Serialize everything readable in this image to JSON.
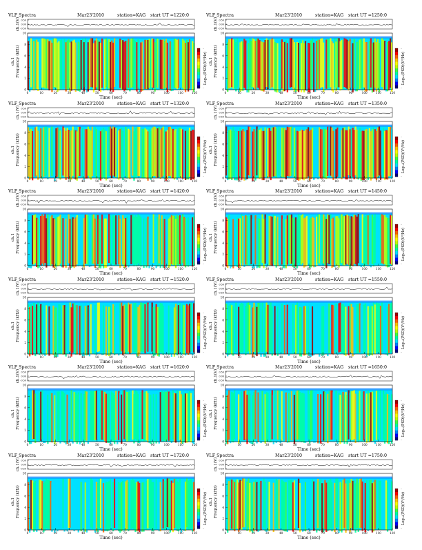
{
  "document": {
    "panel_title": "VLF Spectra",
    "date": "Mar23'2010",
    "station": "station=KAG",
    "start_prefix": "start  UT  =",
    "trace_label": "ch.1(V)",
    "trace_ticks": [
      "0.50",
      "0.00",
      "-0.50"
    ],
    "spectrogram_ylabel": "Frequency  (kHz)",
    "channel_label": "ch.1",
    "xlabel": "Time  (sec)",
    "colorbar_label": "Log₁₀(PSD)(V²/Hz)",
    "colormap": [
      "#00007f",
      "#0000ff",
      "#0080ff",
      "#00e0ff",
      "#00ff9f",
      "#40ff40",
      "#c0ff00",
      "#ffff00",
      "#ffc000",
      "#ff6000",
      "#ff0000",
      "#a00000"
    ],
    "background_color": "#00e0ff"
  },
  "chart_data": [
    {
      "type": "heatmap",
      "start_ut": "1220:0",
      "x_ticks": [
        "0",
        "10",
        "20",
        "30",
        "40",
        "50",
        "60",
        "70",
        "80",
        "90",
        "100",
        "110",
        "120"
      ],
      "xlim": [
        0,
        120
      ],
      "y_ticks": [
        "0",
        "2",
        "4",
        "6",
        "8",
        "10"
      ],
      "ylim": [
        0,
        10
      ],
      "colorbar_ticks": [
        "-",
        "-"
      ],
      "activity": 0.9
    },
    {
      "type": "heatmap",
      "start_ut": "1250:0",
      "x_ticks": [
        "0",
        "10",
        "20",
        "30",
        "40",
        "50",
        "60",
        "70",
        "80",
        "90",
        "100",
        "110",
        "120"
      ],
      "xlim": [
        0,
        120
      ],
      "y_ticks": [
        "0",
        "2",
        "4",
        "6",
        "8",
        "10"
      ],
      "ylim": [
        0,
        10
      ],
      "colorbar_ticks": [
        "-",
        "-"
      ],
      "activity": 0.88
    },
    {
      "type": "heatmap",
      "start_ut": "1320:0",
      "x_ticks": [
        "0",
        "10",
        "20",
        "30",
        "40",
        "50",
        "60",
        "70",
        "80",
        "90",
        "100",
        "110",
        "120"
      ],
      "xlim": [
        0,
        120
      ],
      "y_ticks": [
        "0",
        "2",
        "4",
        "6",
        "8",
        "10"
      ],
      "ylim": [
        0,
        10
      ],
      "colorbar_ticks": [
        "-",
        "-"
      ],
      "activity": 0.82
    },
    {
      "type": "heatmap",
      "start_ut": "1350:0",
      "x_ticks": [
        "0",
        "10",
        "20",
        "30",
        "40",
        "50",
        "60",
        "70",
        "80",
        "90",
        "100",
        "110",
        "120"
      ],
      "xlim": [
        0,
        120
      ],
      "y_ticks": [
        "0",
        "2",
        "4",
        "6",
        "8",
        "10"
      ],
      "ylim": [
        0,
        10
      ],
      "colorbar_ticks": [
        "-",
        "-"
      ],
      "activity": 0.78
    },
    {
      "type": "heatmap",
      "start_ut": "1420:0",
      "x_ticks": [
        "0",
        "10",
        "20",
        "30",
        "40",
        "50",
        "60",
        "70",
        "80",
        "90",
        "100",
        "110",
        "120"
      ],
      "xlim": [
        0,
        120
      ],
      "y_ticks": [
        "0",
        "2",
        "4",
        "6",
        "8",
        "10"
      ],
      "ylim": [
        0,
        10
      ],
      "colorbar_ticks": [
        "-",
        "-"
      ],
      "activity": 0.65
    },
    {
      "type": "heatmap",
      "start_ut": "1450:0",
      "x_ticks": [
        "0",
        "10",
        "20",
        "30",
        "40",
        "50",
        "60",
        "70",
        "80",
        "90",
        "100",
        "110",
        "120"
      ],
      "xlim": [
        0,
        120
      ],
      "y_ticks": [
        "0",
        "2",
        "4",
        "6",
        "8",
        "10"
      ],
      "ylim": [
        0,
        10
      ],
      "colorbar_ticks": [
        "-",
        "-"
      ],
      "activity": 0.62
    },
    {
      "type": "heatmap",
      "start_ut": "1520:0",
      "x_ticks": [
        "0",
        "10",
        "20",
        "30",
        "40",
        "50",
        "60",
        "70",
        "80",
        "90",
        "100",
        "110",
        "120"
      ],
      "xlim": [
        0,
        120
      ],
      "y_ticks": [
        "0",
        "2",
        "4",
        "6",
        "8",
        "10"
      ],
      "ylim": [
        0,
        10
      ],
      "colorbar_ticks": [
        "-",
        "-"
      ],
      "activity": 0.45
    },
    {
      "type": "heatmap",
      "start_ut": "1550:0",
      "x_ticks": [
        "0",
        "10",
        "20",
        "30",
        "40",
        "50",
        "60",
        "70",
        "80",
        "90",
        "100",
        "110",
        "120"
      ],
      "xlim": [
        0,
        120
      ],
      "y_ticks": [
        "0",
        "2",
        "4",
        "6",
        "8",
        "10"
      ],
      "ylim": [
        0,
        10
      ],
      "colorbar_ticks": [
        "-",
        "-"
      ],
      "activity": 0.42
    },
    {
      "type": "heatmap",
      "start_ut": "1620:0",
      "x_ticks": [
        "0",
        "10",
        "20",
        "30",
        "40",
        "50",
        "60",
        "70",
        "80",
        "90",
        "100",
        "110",
        "120"
      ],
      "xlim": [
        0,
        120
      ],
      "y_ticks": [
        "0",
        "2",
        "4",
        "6",
        "8",
        "10"
      ],
      "ylim": [
        0,
        10
      ],
      "colorbar_ticks": [
        "-",
        "-"
      ],
      "activity": 0.38
    },
    {
      "type": "heatmap",
      "start_ut": "1650:0",
      "x_ticks": [
        "0",
        "10",
        "20",
        "30",
        "40",
        "50",
        "60",
        "70",
        "80",
        "90",
        "100",
        "110",
        "120"
      ],
      "xlim": [
        0,
        120
      ],
      "y_ticks": [
        "0",
        "2",
        "4",
        "6",
        "8",
        "10"
      ],
      "ylim": [
        0,
        10
      ],
      "colorbar_ticks": [
        "-",
        "-"
      ],
      "activity": 0.35
    },
    {
      "type": "heatmap",
      "start_ut": "1720:0",
      "x_ticks": [
        "0",
        "10",
        "20",
        "30",
        "40",
        "50",
        "60",
        "70",
        "80",
        "90",
        "100",
        "110",
        "120"
      ],
      "xlim": [
        0,
        120
      ],
      "y_ticks": [
        "0",
        "2",
        "4",
        "6",
        "8",
        "10"
      ],
      "ylim": [
        0,
        10
      ],
      "colorbar_ticks": [
        "-",
        "-"
      ],
      "activity": 0.4
    },
    {
      "type": "heatmap",
      "start_ut": "1750:0",
      "x_ticks": [
        "0",
        "10",
        "20",
        "30",
        "40",
        "50",
        "60",
        "70",
        "80",
        "90",
        "100",
        "110",
        "120"
      ],
      "xlim": [
        0,
        120
      ],
      "y_ticks": [
        "0",
        "2",
        "4",
        "6",
        "8",
        "10"
      ],
      "ylim": [
        0,
        10
      ],
      "colorbar_ticks": [
        "-",
        "-"
      ],
      "activity": 0.5
    }
  ]
}
